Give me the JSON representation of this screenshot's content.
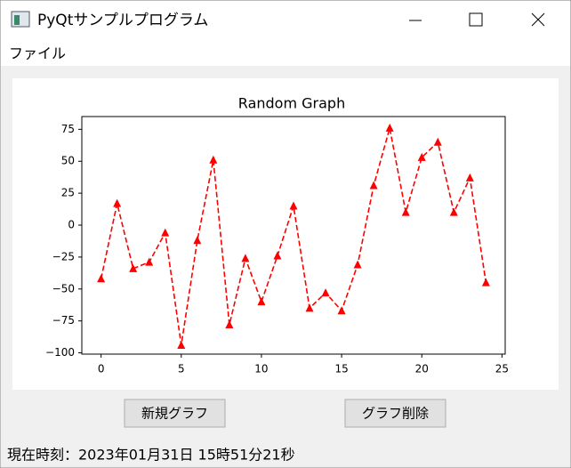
{
  "window": {
    "title": "PyQtサンプルプログラム"
  },
  "menu": {
    "items": [
      "ファイル"
    ]
  },
  "chart_data": {
    "type": "line",
    "title": "Random Graph",
    "x": [
      0,
      1,
      2,
      3,
      4,
      5,
      6,
      7,
      8,
      9,
      10,
      11,
      12,
      13,
      14,
      15,
      16,
      17,
      18,
      19,
      20,
      21,
      22,
      23,
      24
    ],
    "values": [
      -42,
      17,
      -34,
      -29,
      -6,
      -94,
      -12,
      51,
      -78,
      -26,
      -60,
      -24,
      15,
      -65,
      -53,
      -67,
      -31,
      31,
      76,
      10,
      53,
      65,
      10,
      37,
      -45
    ],
    "color": "#ff0000",
    "line_style": "dashed",
    "marker": "triangle",
    "xlim": [
      -1.2,
      25.2
    ],
    "xticks": [
      0,
      5,
      10,
      15,
      20,
      25
    ],
    "ylim": [
      -101,
      85
    ],
    "yticks": [
      {
        "value": -100,
        "label": "−100"
      },
      {
        "value": -75,
        "label": "−75"
      },
      {
        "value": -50,
        "label": "−50"
      },
      {
        "value": -25,
        "label": "−25"
      },
      0,
      25,
      50,
      75
    ],
    "grid": false
  },
  "buttons": [
    "新規グラフ",
    "グラフ削除"
  ],
  "status": {
    "text": "現在時刻：2023年01月31日 15時51分21秒"
  }
}
